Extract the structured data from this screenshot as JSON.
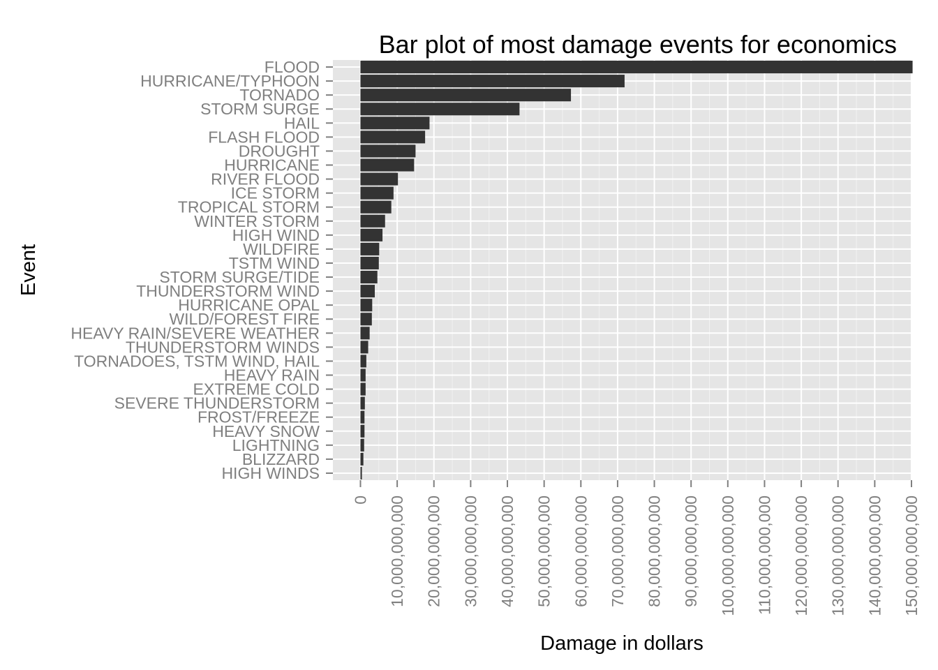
{
  "chart_data": {
    "type": "bar",
    "orientation": "horizontal",
    "title": "Bar plot of most damage events for economics",
    "xlabel": "Damage in dollars",
    "ylabel": "Event",
    "xlim": [
      -7500000000,
      150000000000
    ],
    "x_ticks": [
      0,
      10000000000,
      20000000000,
      30000000000,
      40000000000,
      50000000000,
      60000000000,
      70000000000,
      80000000000,
      90000000000,
      100000000000,
      110000000000,
      120000000000,
      130000000000,
      140000000000,
      150000000000
    ],
    "x_tick_labels": [
      "0",
      "10,000,000,000",
      "20,000,000,000",
      "30,000,000,000",
      "40,000,000,000",
      "50,000,000,000",
      "60,000,000,000",
      "70,000,000,000",
      "80,000,000,000",
      "90,000,000,000",
      "100,000,000,000",
      "110,000,000,000",
      "120,000,000,000",
      "130,000,000,000",
      "140,000,000,000",
      "150,000,000,000"
    ],
    "grid": true,
    "bar_color": "#333333",
    "panel_background": "#e5e5e5",
    "categories": [
      "FLOOD",
      "HURRICANE/TYPHOON",
      "TORNADO",
      "STORM SURGE",
      "HAIL",
      "FLASH FLOOD",
      "DROUGHT",
      "HURRICANE",
      "RIVER FLOOD",
      "ICE STORM",
      "TROPICAL STORM",
      "WINTER STORM",
      "HIGH WIND",
      "WILDFIRE",
      "TSTM WIND",
      "STORM SURGE/TIDE",
      "THUNDERSTORM WIND",
      "HURRICANE OPAL",
      "WILD/FOREST FIRE",
      "HEAVY RAIN/SEVERE WEATHER",
      "THUNDERSTORM WINDS",
      "TORNADOES, TSTM WIND, HAIL",
      "HEAVY RAIN",
      "EXTREME COLD",
      "SEVERE THUNDERSTORM",
      "FROST/FREEZE",
      "HEAVY SNOW",
      "LIGHTNING",
      "BLIZZARD",
      "HIGH WINDS"
    ],
    "values": [
      150300000000,
      71900000000,
      57300000000,
      43300000000,
      18800000000,
      17600000000,
      15000000000,
      14600000000,
      10200000000,
      9000000000,
      8400000000,
      6700000000,
      6000000000,
      5100000000,
      5000000000,
      4600000000,
      3900000000,
      3200000000,
      3100000000,
      2500000000,
      2100000000,
      1600000000,
      1400000000,
      1400000000,
      1200000000,
      1100000000,
      1100000000,
      1000000000,
      800000000,
      400000000
    ]
  }
}
